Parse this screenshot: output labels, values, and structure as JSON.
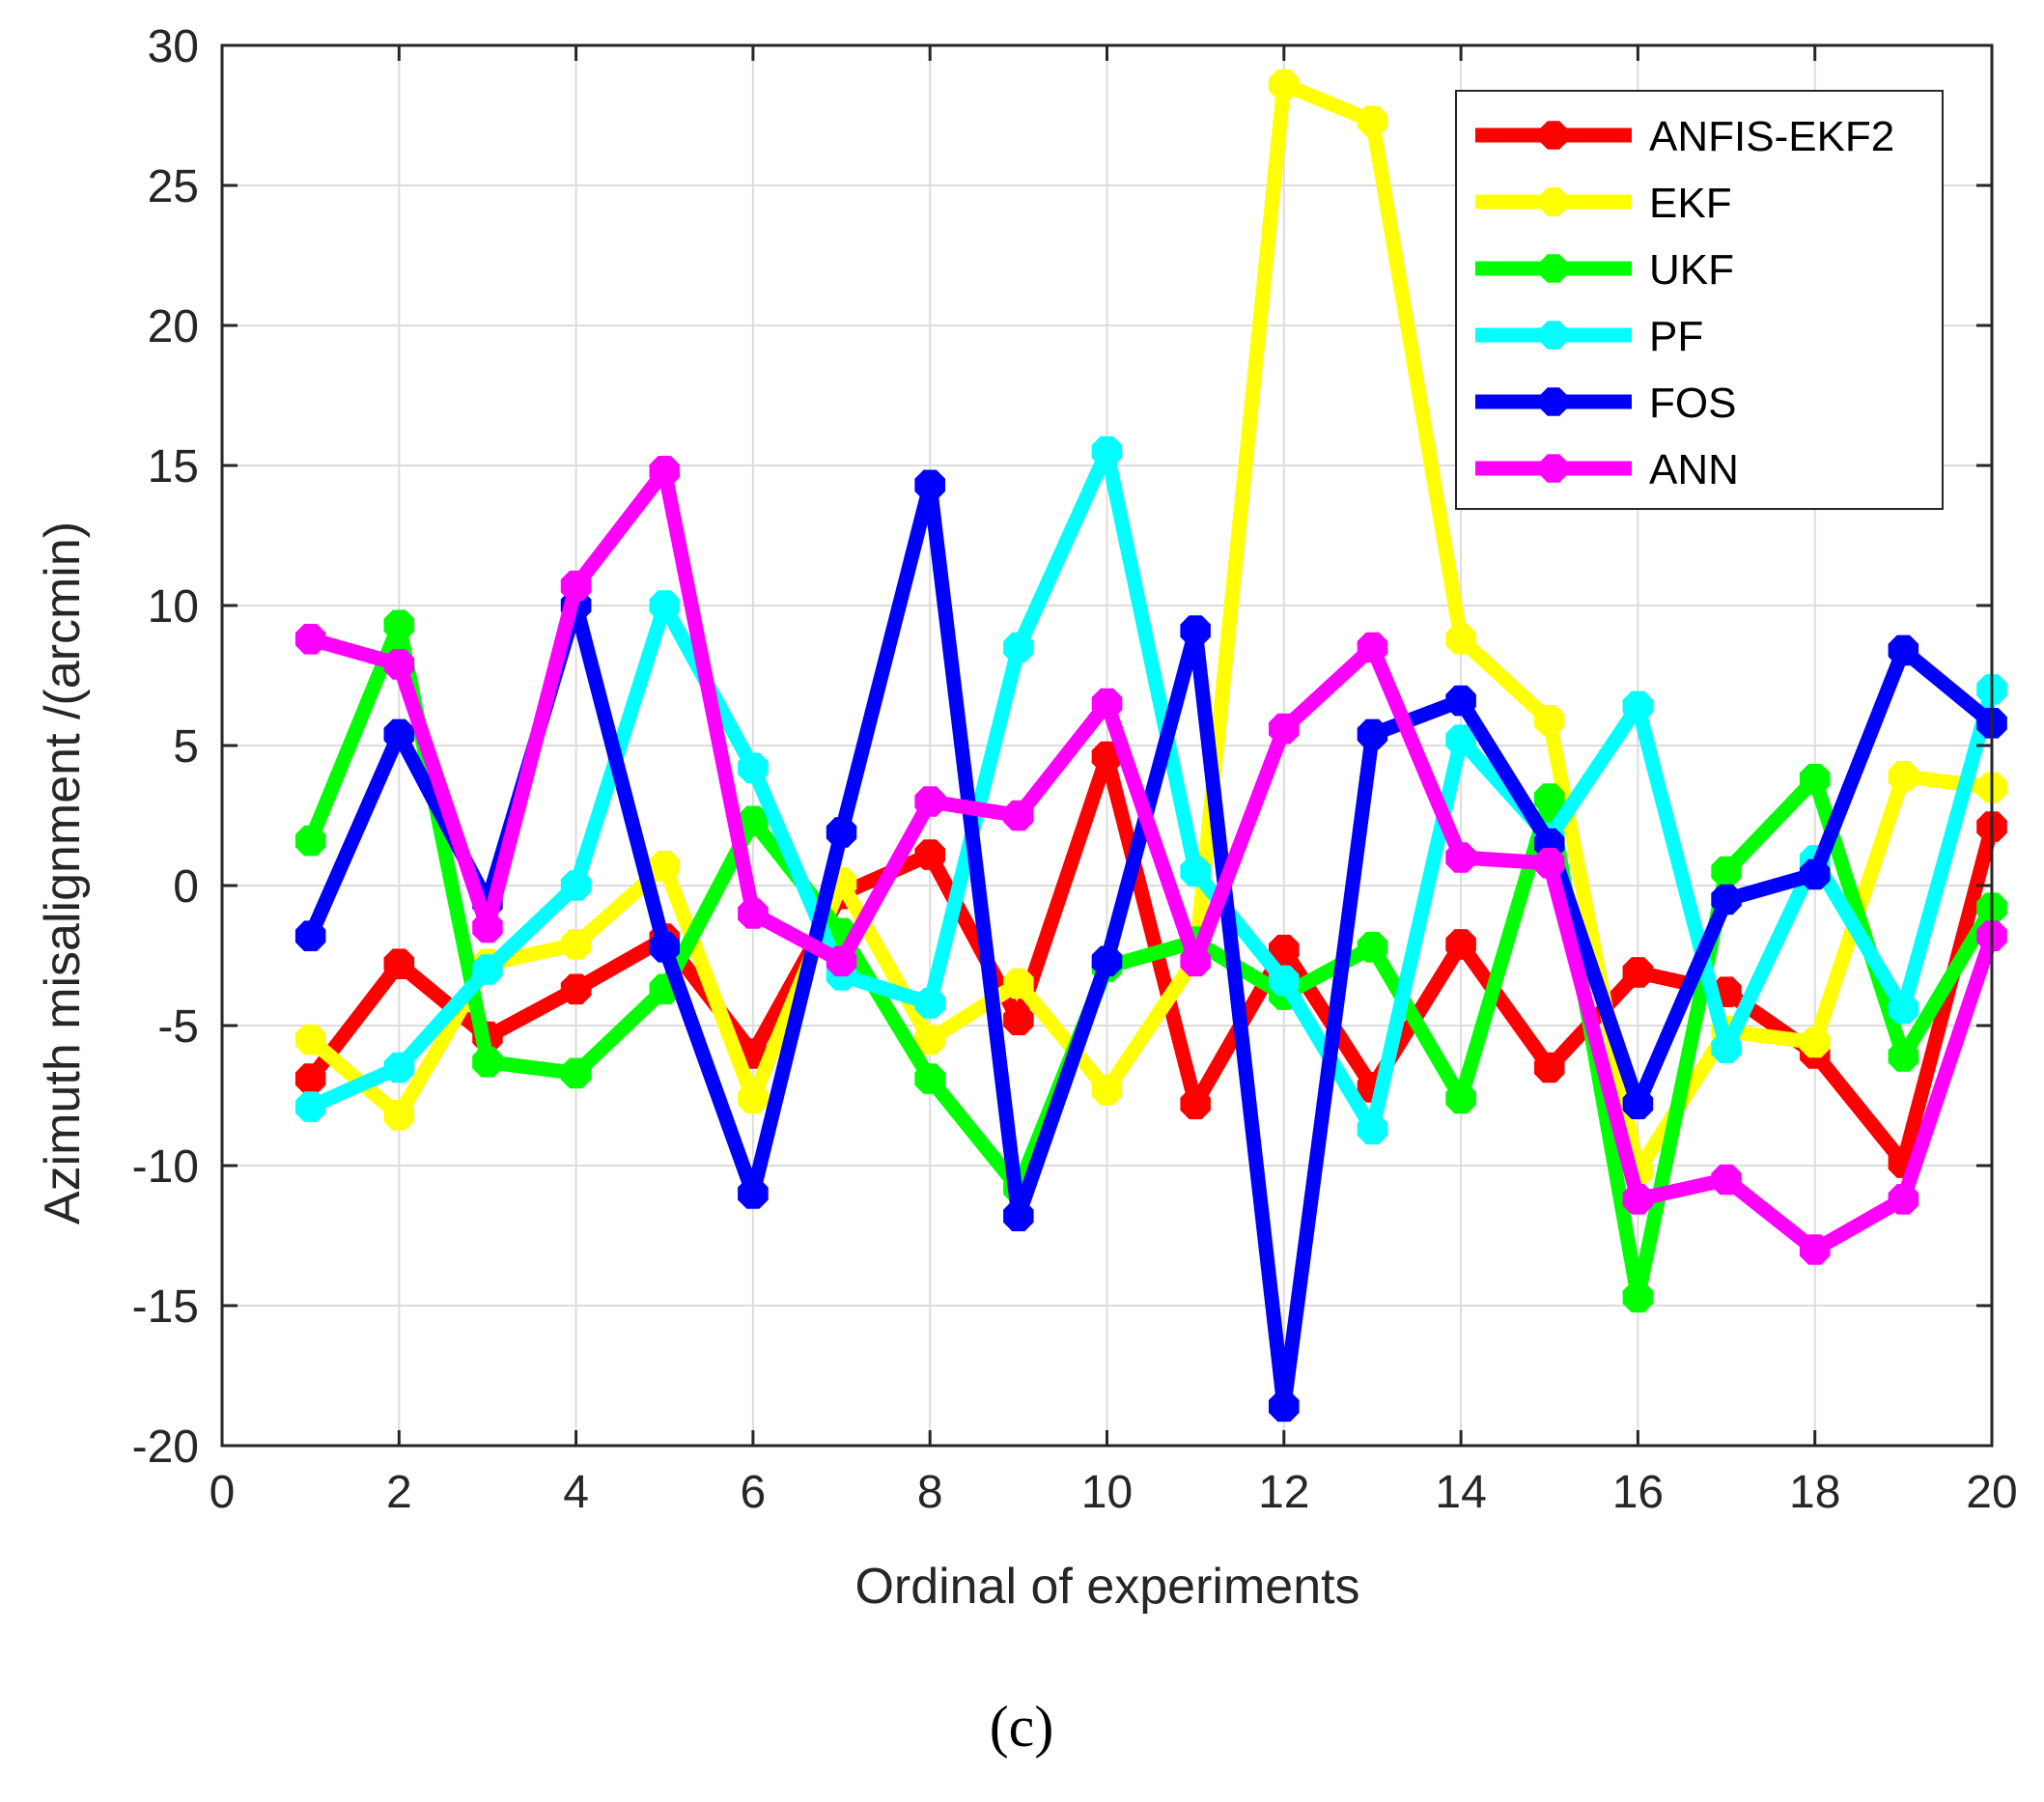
{
  "chart_data": {
    "type": "line",
    "title": "",
    "xlabel": "Ordinal of experiments",
    "ylabel": "Azimuth misalignment /(arcmin)",
    "xlim": [
      0,
      20
    ],
    "ylim": [
      -20,
      30
    ],
    "xticks": [
      "0",
      "2",
      "4",
      "6",
      "8",
      "10",
      "12",
      "14",
      "16",
      "18",
      "20"
    ],
    "yticks": [
      "30",
      "25",
      "20",
      "15",
      "10",
      "5",
      "0",
      "-5",
      "-10",
      "-15",
      "-20"
    ],
    "grid": true,
    "legend_position": "top-right",
    "x": [
      1,
      2,
      3,
      4,
      5,
      6,
      7,
      8,
      9,
      10,
      11,
      12,
      13,
      14,
      15,
      16,
      17,
      18,
      19,
      20
    ],
    "series": [
      {
        "name": "ANFIS-EKF2",
        "color": "#ff0000",
        "values": [
          -6.9,
          -2.8,
          -5.4,
          -3.7,
          -1.9,
          -6.0,
          -0.3,
          1.1,
          -4.8,
          4.6,
          -7.8,
          -2.3,
          -7.2,
          -2.1,
          -6.5,
          -3.1,
          -3.8,
          -6.0,
          -9.9,
          2.1
        ]
      },
      {
        "name": "EKF",
        "color": "#ffff00",
        "values": [
          -5.5,
          -8.2,
          -2.8,
          -2.1,
          0.7,
          -7.6,
          0.1,
          -5.5,
          -3.5,
          -7.3,
          -2.6,
          28.6,
          27.3,
          8.8,
          5.9,
          -10.2,
          -5.2,
          -5.6,
          3.9,
          3.5
        ]
      },
      {
        "name": "UKF",
        "color": "#00ff00",
        "values": [
          1.6,
          9.3,
          -6.3,
          -6.7,
          -3.7,
          2.3,
          -1.7,
          -6.9,
          -10.8,
          -2.9,
          -2.0,
          -3.9,
          -2.2,
          -7.6,
          3.1,
          -14.7,
          0.5,
          3.8,
          -6.1,
          -0.8
        ]
      },
      {
        "name": "PF",
        "color": "#00ffff",
        "values": [
          -7.9,
          -6.5,
          -3.0,
          0.0,
          10.0,
          4.2,
          -3.2,
          -4.2,
          8.5,
          15.5,
          0.5,
          -3.4,
          -8.7,
          5.2,
          1.7,
          6.4,
          -5.8,
          0.9,
          -4.4,
          7.0
        ]
      },
      {
        "name": "FOS",
        "color": "#0000ff",
        "values": [
          -1.8,
          5.4,
          -0.6,
          10.0,
          -2.2,
          -11.0,
          1.9,
          14.3,
          -11.8,
          -2.7,
          9.1,
          -18.6,
          5.4,
          6.6,
          1.5,
          -7.8,
          -0.5,
          0.4,
          8.4,
          5.8
        ]
      },
      {
        "name": "ANN",
        "color": "#ff00ff",
        "values": [
          8.8,
          7.9,
          -1.5,
          10.7,
          14.8,
          -1.0,
          -2.7,
          3.0,
          2.5,
          6.5,
          -2.7,
          5.6,
          8.5,
          1.0,
          0.8,
          -11.2,
          -10.5,
          -13.0,
          -11.2,
          -1.8
        ]
      }
    ]
  },
  "caption": "(c)"
}
